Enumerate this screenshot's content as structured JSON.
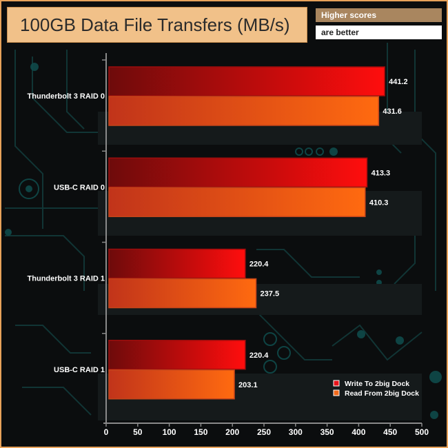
{
  "title": "100GB Data File Transfers (MB/s)",
  "badge": {
    "line1": "Higher scores",
    "line2": "are better"
  },
  "chart_data": {
    "type": "bar",
    "orientation": "horizontal",
    "title": "100GB Data File Transfers (MB/s)",
    "categories": [
      "Thunderbolt 3 RAID 0",
      "USB-C RAID 0",
      "Thunderbolt 3 RAID 1",
      "USB-C RAID 1"
    ],
    "series": [
      {
        "name": "Write To 2big Dock",
        "values": [
          441.2,
          413.3,
          220.4,
          220.4
        ],
        "color": "#e8131a"
      },
      {
        "name": "Read From 2big Dock",
        "values": [
          431.6,
          410.3,
          237.5,
          203.1
        ],
        "color": "#f26a1b"
      }
    ],
    "xlim": [
      0,
      500
    ],
    "xticks": [
      0,
      50,
      100,
      150,
      200,
      250,
      300,
      350,
      400,
      450,
      500
    ],
    "grid": false,
    "legend_position": "bottom-right"
  }
}
